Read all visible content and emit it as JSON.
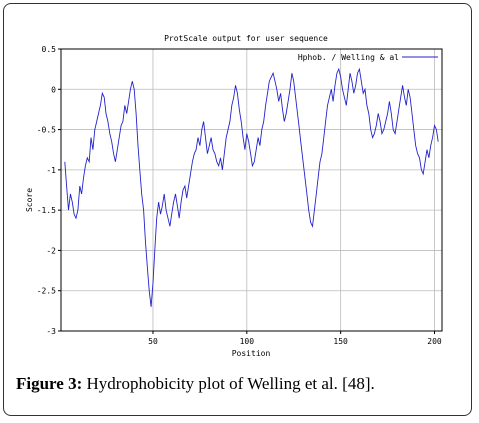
{
  "chart_data": {
    "type": "line",
    "title": "ProtScale output for user sequence",
    "xlabel": "Position",
    "ylabel": "Score",
    "xlim": [
      1,
      204
    ],
    "ylim": [
      -3,
      0.5
    ],
    "xticks": [
      50,
      100,
      150,
      200
    ],
    "yticks": [
      0.5,
      0,
      -0.5,
      -1,
      -1.5,
      -2,
      -2.5,
      -3
    ],
    "xtick_labels": [
      "50",
      "100",
      "150",
      "200"
    ],
    "ytick_labels": [
      "0.5",
      "0",
      "-0.5",
      "-1",
      "-1.5",
      "-2",
      "-2.5",
      "-3"
    ],
    "grid": true,
    "legend_position": "top-right",
    "colors": {
      "line": "#2222cc",
      "grid": "#bbbbbb",
      "axis": "#000000"
    },
    "series": [
      {
        "name": "Hphob. / Welling & al",
        "x": [
          3,
          4,
          5,
          6,
          7,
          8,
          9,
          10,
          11,
          12,
          13,
          14,
          15,
          16,
          17,
          18,
          19,
          20,
          21,
          22,
          23,
          24,
          25,
          26,
          27,
          28,
          29,
          30,
          31,
          32,
          33,
          34,
          35,
          36,
          37,
          38,
          39,
          40,
          41,
          42,
          43,
          44,
          45,
          46,
          47,
          48,
          49,
          50,
          51,
          52,
          53,
          54,
          55,
          56,
          57,
          58,
          59,
          60,
          61,
          62,
          63,
          64,
          65,
          66,
          67,
          68,
          69,
          70,
          71,
          72,
          73,
          74,
          75,
          76,
          77,
          78,
          79,
          80,
          81,
          82,
          83,
          84,
          85,
          86,
          87,
          88,
          89,
          90,
          91,
          92,
          93,
          94,
          95,
          96,
          97,
          98,
          99,
          100,
          101,
          102,
          103,
          104,
          105,
          106,
          107,
          108,
          109,
          110,
          111,
          112,
          113,
          114,
          115,
          116,
          117,
          118,
          119,
          120,
          121,
          122,
          123,
          124,
          125,
          126,
          127,
          128,
          129,
          130,
          131,
          132,
          133,
          134,
          135,
          136,
          137,
          138,
          139,
          140,
          141,
          142,
          143,
          144,
          145,
          146,
          147,
          148,
          149,
          150,
          151,
          152,
          153,
          154,
          155,
          156,
          157,
          158,
          159,
          160,
          161,
          162,
          163,
          164,
          165,
          166,
          167,
          168,
          169,
          170,
          171,
          172,
          173,
          174,
          175,
          176,
          177,
          178,
          179,
          180,
          181,
          182,
          183,
          184,
          185,
          186,
          187,
          188,
          189,
          190,
          191,
          192,
          193,
          194,
          195,
          196,
          197,
          198,
          199,
          200,
          201,
          202
        ],
        "values": [
          -0.9,
          -1.2,
          -1.5,
          -1.3,
          -1.4,
          -1.55,
          -1.6,
          -1.5,
          -1.2,
          -1.3,
          -1.1,
          -0.95,
          -0.85,
          -0.9,
          -0.6,
          -0.75,
          -0.5,
          -0.4,
          -0.3,
          -0.2,
          -0.05,
          -0.1,
          -0.3,
          -0.4,
          -0.55,
          -0.65,
          -0.8,
          -0.9,
          -0.75,
          -0.6,
          -0.45,
          -0.4,
          -0.2,
          -0.3,
          -0.15,
          0.0,
          0.1,
          0.0,
          -0.3,
          -0.7,
          -1.0,
          -1.3,
          -1.5,
          -1.9,
          -2.2,
          -2.5,
          -2.7,
          -2.4,
          -2.0,
          -1.6,
          -1.4,
          -1.55,
          -1.45,
          -1.3,
          -1.5,
          -1.6,
          -1.7,
          -1.55,
          -1.4,
          -1.3,
          -1.45,
          -1.6,
          -1.4,
          -1.25,
          -1.2,
          -1.35,
          -1.2,
          -1.05,
          -0.9,
          -0.8,
          -0.75,
          -0.6,
          -0.7,
          -0.5,
          -0.4,
          -0.6,
          -0.8,
          -0.7,
          -0.6,
          -0.75,
          -0.8,
          -0.9,
          -0.95,
          -0.85,
          -1.0,
          -0.8,
          -0.6,
          -0.5,
          -0.4,
          -0.2,
          -0.1,
          0.05,
          -0.05,
          -0.25,
          -0.4,
          -0.6,
          -0.75,
          -0.55,
          -0.65,
          -0.8,
          -0.95,
          -0.9,
          -0.75,
          -0.6,
          -0.7,
          -0.5,
          -0.4,
          -0.2,
          -0.05,
          0.1,
          0.15,
          0.2,
          0.1,
          0.0,
          -0.15,
          -0.05,
          -0.25,
          -0.4,
          -0.3,
          -0.15,
          0.0,
          0.2,
          0.1,
          -0.1,
          -0.3,
          -0.5,
          -0.7,
          -0.9,
          -1.1,
          -1.3,
          -1.5,
          -1.65,
          -1.7,
          -1.5,
          -1.3,
          -1.1,
          -0.9,
          -0.8,
          -0.6,
          -0.4,
          -0.2,
          -0.1,
          0.0,
          -0.15,
          0.05,
          0.2,
          0.25,
          0.15,
          0.0,
          -0.1,
          -0.2,
          0.0,
          0.2,
          0.1,
          -0.05,
          0.05,
          0.2,
          0.25,
          0.1,
          -0.05,
          0.0,
          -0.2,
          -0.3,
          -0.5,
          -0.6,
          -0.55,
          -0.45,
          -0.3,
          -0.4,
          -0.55,
          -0.5,
          -0.4,
          -0.3,
          -0.15,
          -0.3,
          -0.5,
          -0.55,
          -0.4,
          -0.25,
          -0.1,
          0.05,
          -0.1,
          -0.2,
          0.0,
          -0.1,
          -0.3,
          -0.5,
          -0.7,
          -0.8,
          -0.85,
          -1.0,
          -1.05,
          -0.9,
          -0.75,
          -0.85,
          -0.7,
          -0.6,
          -0.45,
          -0.5,
          -0.65
        ]
      }
    ]
  },
  "caption": {
    "label": "Figure 3:",
    "text": "Hydrophobicity plot of Welling et al. [48]."
  }
}
